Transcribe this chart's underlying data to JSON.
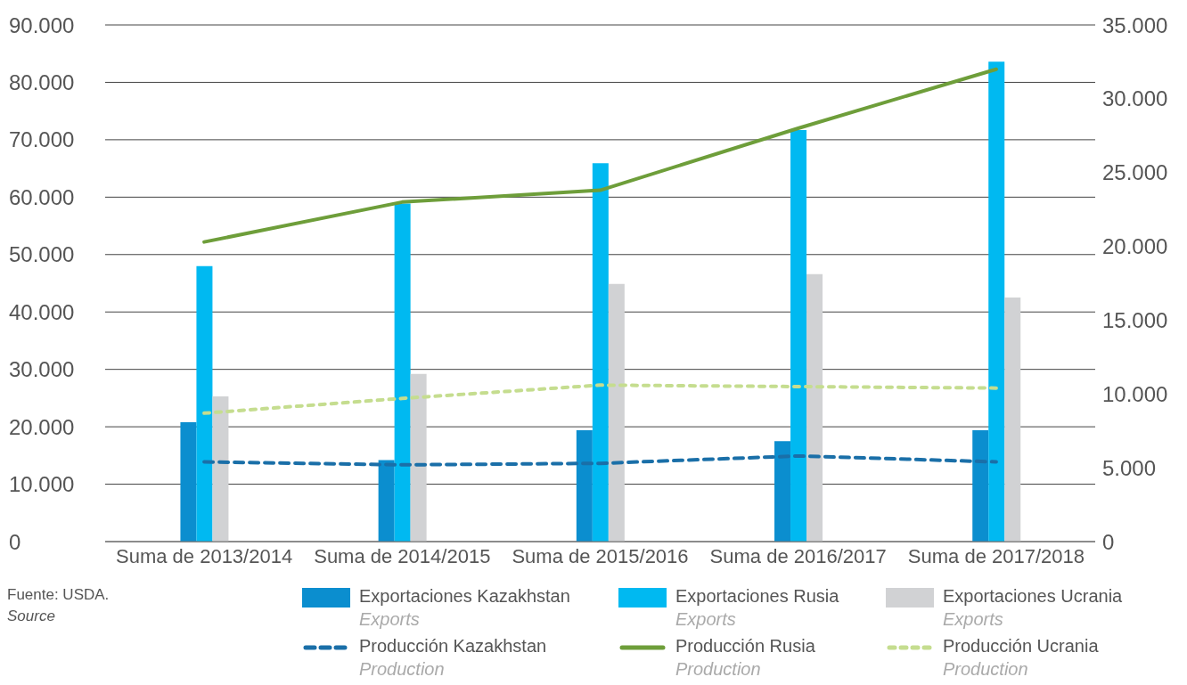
{
  "chart_data": {
    "type": "bar",
    "categories": [
      "Suma de 2013/2014",
      "Suma de 2014/2015",
      "Suma de 2015/2016",
      "Suma de 2016/2017",
      "Suma de 2017/2018"
    ],
    "series": [
      {
        "name": "Exportaciones Kazakhstan\nExports",
        "color": "#0b8ecf",
        "values": [
          20800,
          14200,
          19400,
          17500,
          19400
        ]
      },
      {
        "name": "Exportaciones Rusia\nExports",
        "color": "#00b9f1",
        "values": [
          48000,
          58900,
          65900,
          71700,
          83600
        ]
      },
      {
        "name": "Exportaciones Ucrania\nExports",
        "color": "#d1d2d4",
        "values": [
          25300,
          29200,
          44900,
          46600,
          42500
        ]
      },
      {
        "name": "Producción Kazakhstan\nProduction",
        "type": "line",
        "axis": "y2",
        "line_style": "dashed",
        "color": "#1a6fa8",
        "values": [
          5400,
          5200,
          5300,
          5800,
          5400
        ]
      },
      {
        "name": "Producción Rusia\nProduction",
        "type": "line",
        "axis": "y2",
        "line_style": "solid",
        "color": "#6e9e3a",
        "values": [
          20300,
          23000,
          23800,
          28000,
          32000
        ]
      },
      {
        "name": "Producción Ucrania\nProduction",
        "type": "line",
        "axis": "y2",
        "line_style": "dotted",
        "color": "#c5dd8f",
        "values": [
          8700,
          9700,
          10600,
          10500,
          10400
        ]
      }
    ],
    "ylim": [
      0,
      90000
    ],
    "yticks": [
      0,
      {
        "value": 10000,
        "label": "10.000"
      },
      {
        "value": 20000,
        "label": "20.000"
      },
      {
        "value": 30000,
        "label": "30.000"
      },
      {
        "value": 40000,
        "label": "40.000"
      },
      {
        "value": 50000,
        "label": "50.000"
      },
      {
        "value": 60000,
        "label": "60.000"
      },
      {
        "value": 70000,
        "label": "70.000"
      },
      {
        "value": 80000,
        "label": "80.000"
      },
      {
        "value": 90000,
        "label": "90.000"
      }
    ],
    "y2lim": [
      0,
      35000
    ],
    "y2ticks": [
      0,
      {
        "value": 5000,
        "label": "5.000"
      },
      {
        "value": 10000,
        "label": "10.000"
      },
      {
        "value": 15000,
        "label": "15.000"
      },
      {
        "value": 20000,
        "label": "20.000"
      },
      {
        "value": 25000,
        "label": "25.000"
      },
      {
        "value": 30000,
        "label": "30.000"
      },
      {
        "value": 35000,
        "label": "35.000"
      }
    ],
    "grid": "y",
    "legend": "bottom",
    "annotations": [
      "Fuente: USDA.\nSource"
    ]
  }
}
